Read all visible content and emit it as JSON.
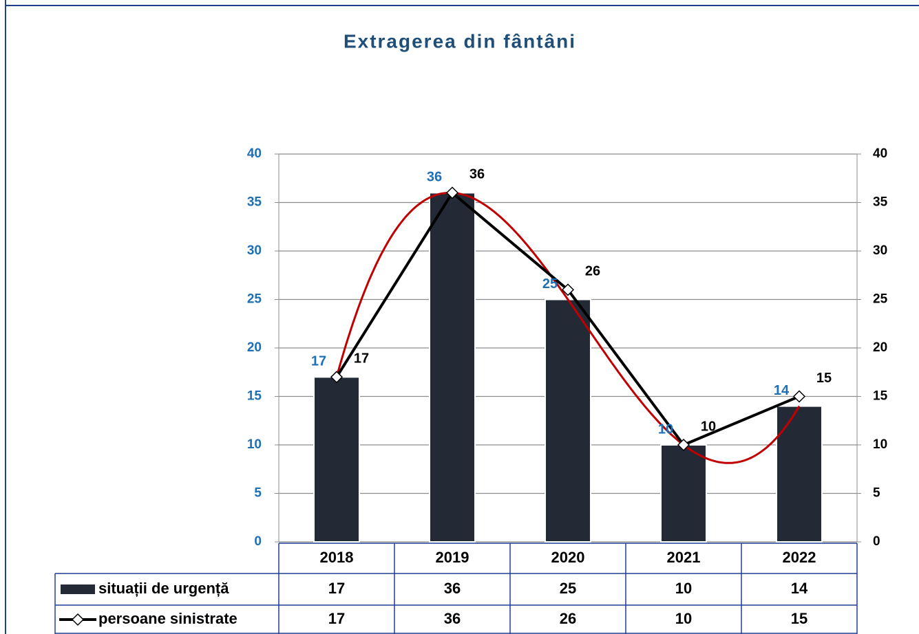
{
  "chart_data": {
    "type": "bar_line",
    "title": "Extragerea din fântâni",
    "categories": [
      "2018",
      "2019",
      "2020",
      "2021",
      "2022"
    ],
    "series": [
      {
        "name": "situații de urgență",
        "type": "bar",
        "color": "#232a36",
        "label_color": "#1f6fb5",
        "values": [
          17,
          36,
          25,
          10,
          14
        ]
      },
      {
        "name": "persoane sinistrate",
        "type": "line",
        "axis": "y2",
        "color": "#000000",
        "label_color": "#000000",
        "values": [
          17,
          36,
          26,
          10,
          15
        ]
      }
    ],
    "trendline": {
      "color": "#c00000"
    },
    "ylim": [
      0,
      40
    ],
    "yticks": [
      0,
      5,
      10,
      15,
      20,
      25,
      30,
      35,
      40
    ],
    "y2lim": [
      0,
      40
    ],
    "y2ticks": [
      0,
      5,
      10,
      15,
      20,
      25,
      30,
      35,
      40
    ],
    "grid": true,
    "data_table": true
  }
}
